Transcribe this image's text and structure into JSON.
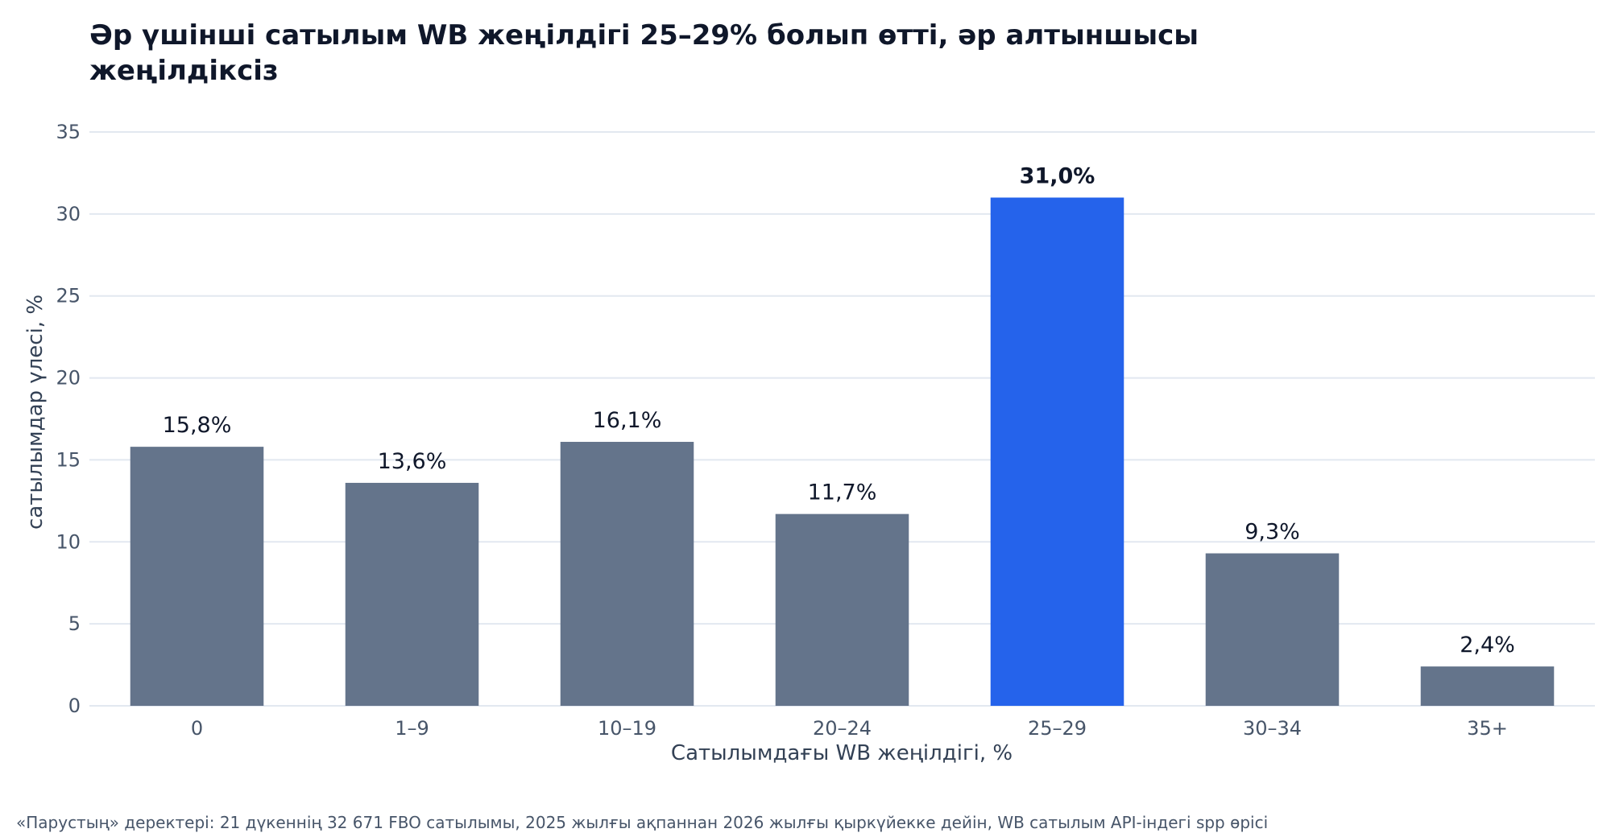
{
  "chart_data": {
    "type": "bar",
    "title": "Әр үшінші сатылым WB жеңілдігі 25–29% болып өтті, әр алтыншысы жеңілдіксіз",
    "xlabel": "Сатылымдағы WB жеңілдігі, %",
    "ylabel": "сатылымдар үлесі, %",
    "categories": [
      "0",
      "1–9",
      "10–19",
      "20–24",
      "25–29",
      "30–34",
      "35+"
    ],
    "values": [
      15.8,
      13.6,
      16.1,
      11.7,
      31.0,
      9.3,
      2.4
    ],
    "value_labels": [
      "15,8%",
      "13,6%",
      "16,1%",
      "11,7%",
      "31,0%",
      "9,3%",
      "2,4%"
    ],
    "highlight_index": 4,
    "ylim": [
      0,
      35
    ],
    "yticks": [
      0,
      5,
      10,
      15,
      20,
      25,
      30,
      35
    ],
    "grid": true,
    "legend": "none",
    "colors": {
      "bar": "#64748b",
      "highlight": "#2563eb",
      "grid": "#e2e8f0",
      "tick_text": "#475569",
      "label_text": "#0f172a",
      "axis_label": "#334155"
    }
  },
  "source_note": "«Парустың» деректері: 21 дүкеннің 32 671 FBO сатылымы, 2025 жылғы ақпаннан 2026 жылғы қыркүйекке дейін, WB сатылым API-індегі spp өрісі"
}
